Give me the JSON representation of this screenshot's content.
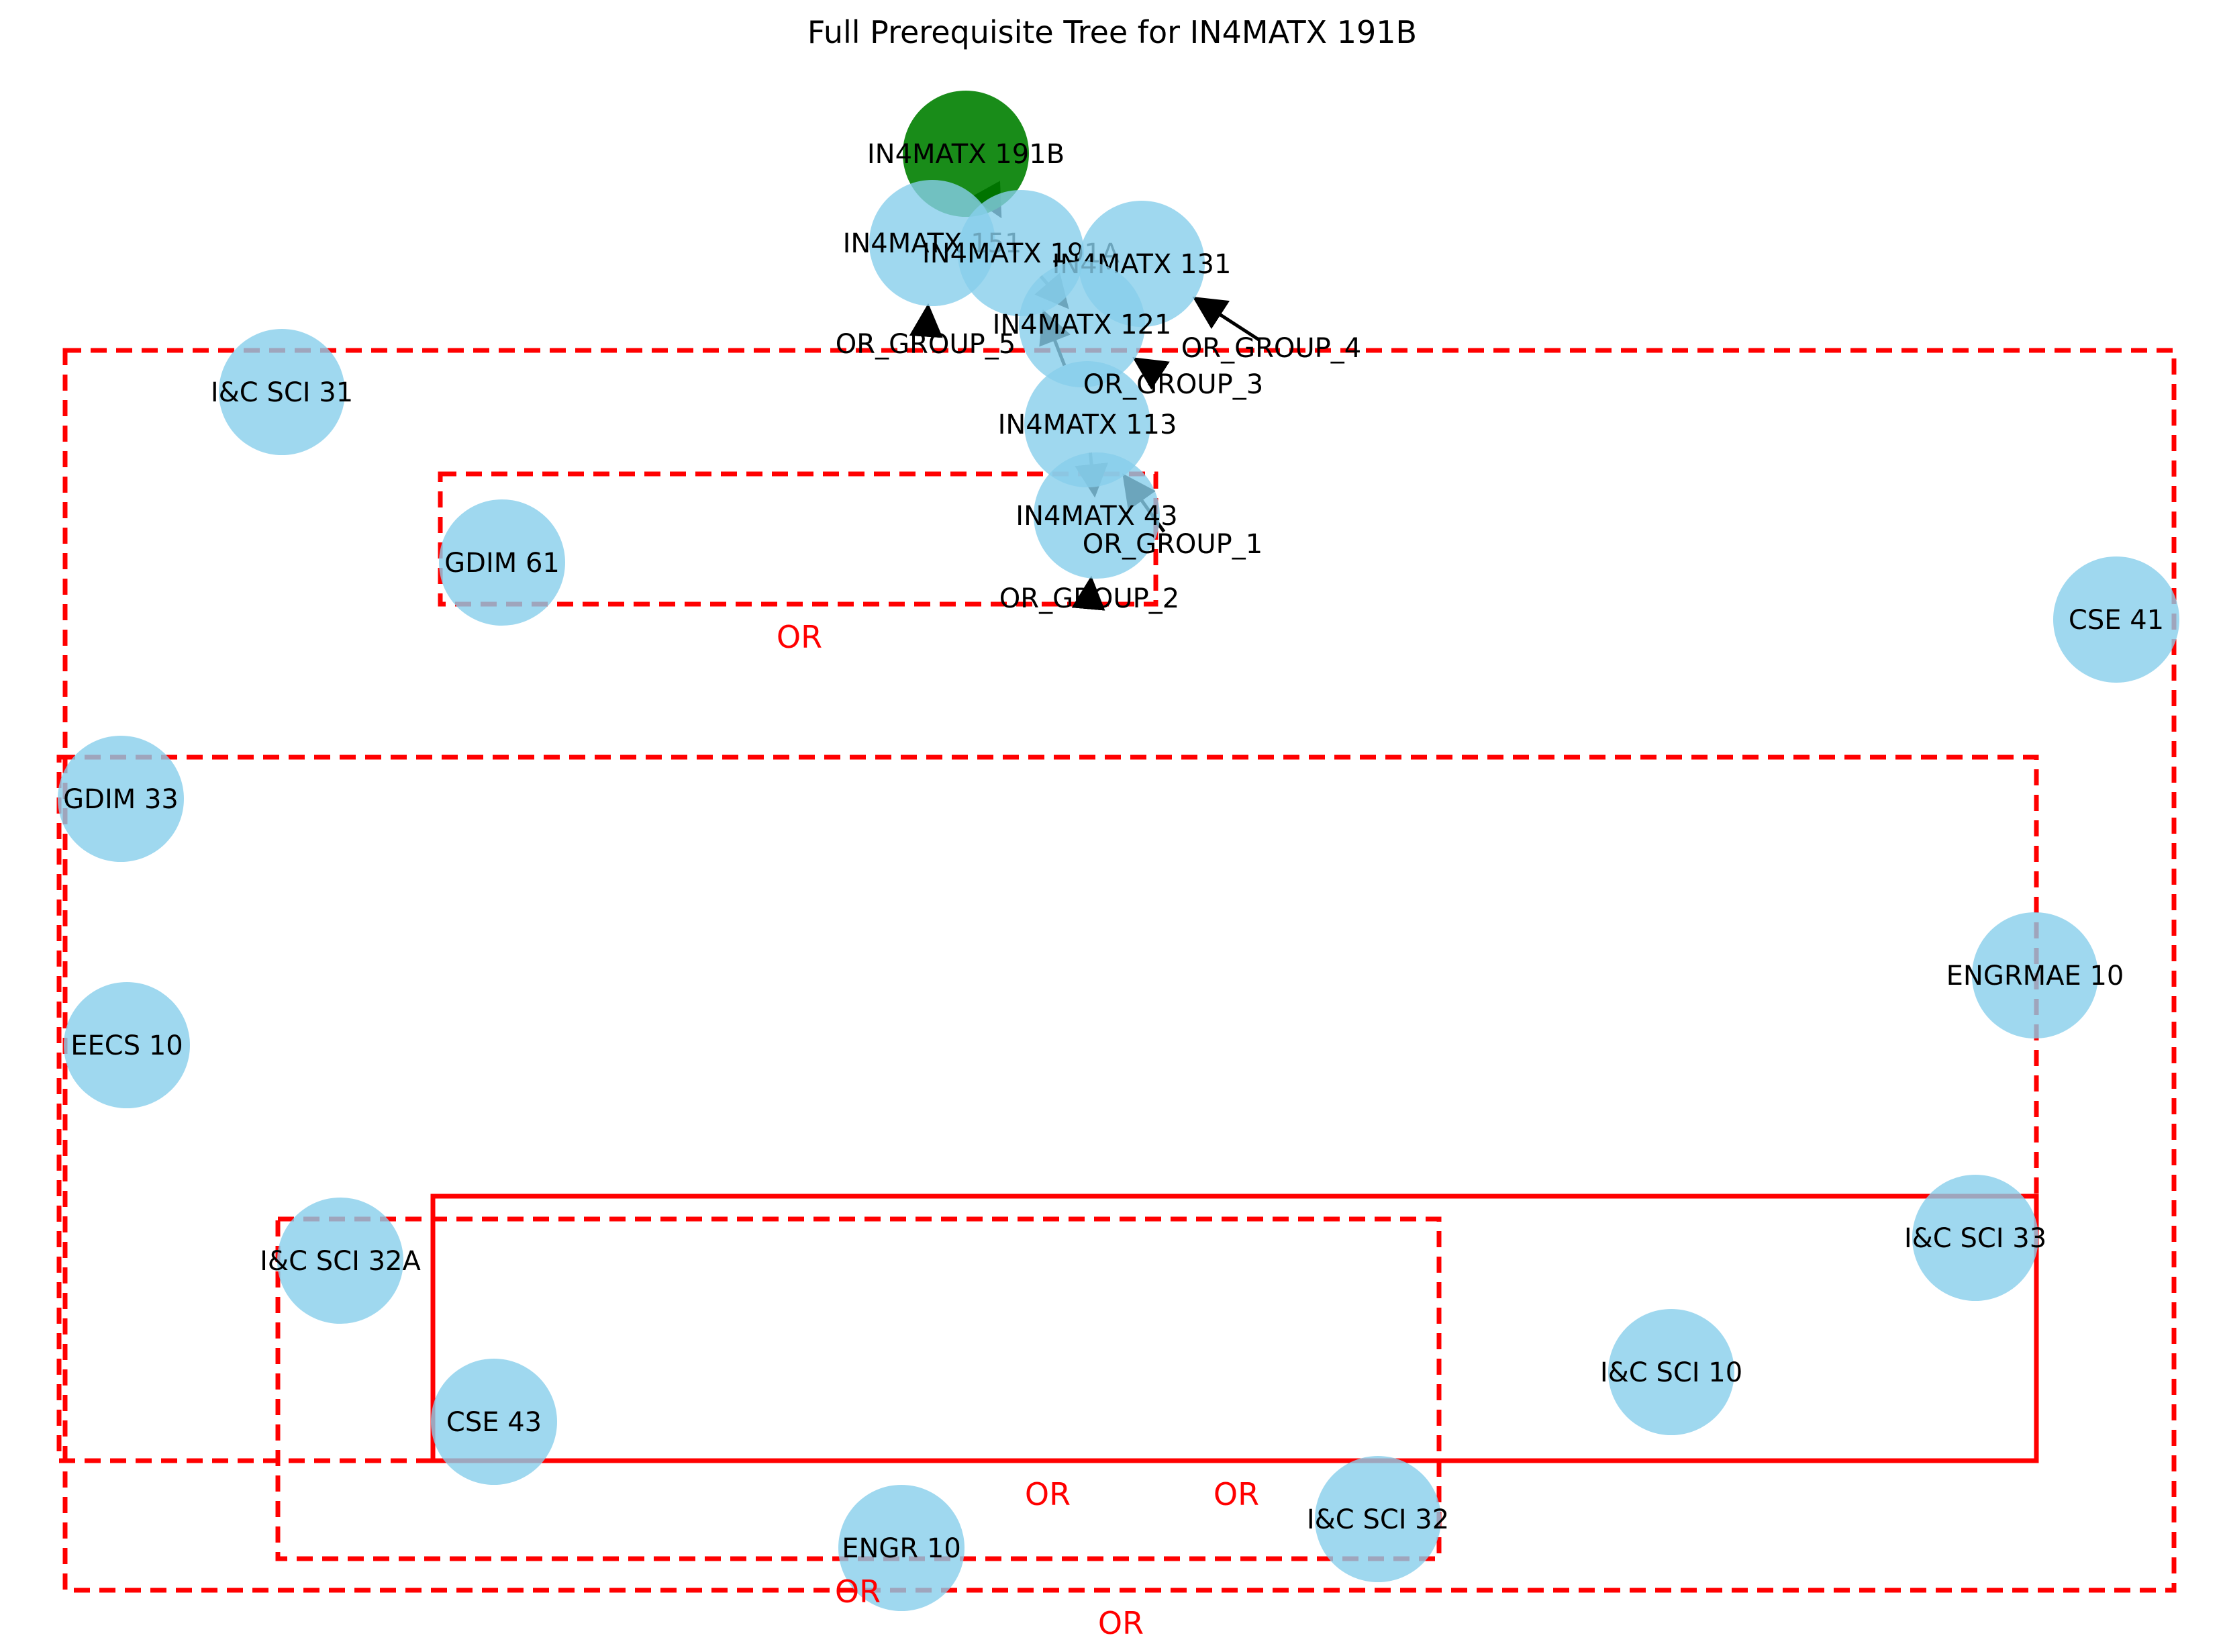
{
  "title": "Full Prerequisite Tree for IN4MATX 191B",
  "colors": {
    "node": "#87CEEB",
    "target": "#008000",
    "or_box": "#FF0000",
    "edge": "#000000",
    "text": "#000000"
  },
  "nodes": [
    {
      "id": "IN4MATX 191B",
      "label": "IN4MATX 191B",
      "target": true
    },
    {
      "id": "IN4MATX 151",
      "label": "IN4MATX 151"
    },
    {
      "id": "IN4MATX 191A",
      "label": "IN4MATX 191A"
    },
    {
      "id": "IN4MATX 131",
      "label": "IN4MATX 131"
    },
    {
      "id": "IN4MATX 121",
      "label": "IN4MATX 121"
    },
    {
      "id": "IN4MATX 113",
      "label": "IN4MATX 113"
    },
    {
      "id": "IN4MATX 43",
      "label": "IN4MATX 43"
    },
    {
      "id": "I&C SCI 31",
      "label": "I&C SCI 31"
    },
    {
      "id": "GDIM 61",
      "label": "GDIM 61"
    },
    {
      "id": "CSE 41",
      "label": "CSE 41"
    },
    {
      "id": "GDIM 33",
      "label": "GDIM 33"
    },
    {
      "id": "ENGRMAE 10",
      "label": "ENGRMAE 10"
    },
    {
      "id": "EECS 10",
      "label": "EECS 10"
    },
    {
      "id": "I&C SCI 33",
      "label": "I&C SCI 33"
    },
    {
      "id": "I&C SCI 32A",
      "label": "I&C SCI 32A"
    },
    {
      "id": "I&C SCI 10",
      "label": "I&C SCI 10"
    },
    {
      "id": "CSE 43",
      "label": "CSE 43"
    },
    {
      "id": "I&C SCI 32",
      "label": "I&C SCI 32"
    },
    {
      "id": "ENGR 10",
      "label": "ENGR 10"
    }
  ],
  "groups": [
    {
      "id": "OR_GROUP_1",
      "label": "OR_GROUP_1"
    },
    {
      "id": "OR_GROUP_2",
      "label": "OR_GROUP_2"
    },
    {
      "id": "OR_GROUP_3",
      "label": "OR_GROUP_3"
    },
    {
      "id": "OR_GROUP_4",
      "label": "OR_GROUP_4"
    },
    {
      "id": "OR_GROUP_5",
      "label": "OR_GROUP_5"
    }
  ],
  "edges": [
    {
      "from": "OR_GROUP_5",
      "to": "IN4MATX 151"
    },
    {
      "from": "OR_GROUP_4",
      "to": "IN4MATX 131"
    },
    {
      "from": "OR_GROUP_3",
      "to": "IN4MATX 121"
    },
    {
      "from": "IN4MATX 191A",
      "to": "IN4MATX 191B"
    },
    {
      "from": "IN4MATX 121",
      "to": "IN4MATX 191A"
    },
    {
      "from": "IN4MATX 113",
      "to": "IN4MATX 191A"
    },
    {
      "from": "OR_GROUP_1",
      "to": "IN4MATX 113"
    },
    {
      "from": "IN4MATX 43",
      "to": "IN4MATX 113"
    },
    {
      "from": "OR_GROUP_2",
      "to": "IN4MATX 43"
    }
  ],
  "or_labels": [
    "OR",
    "OR",
    "OR",
    "OR",
    "OR"
  ]
}
